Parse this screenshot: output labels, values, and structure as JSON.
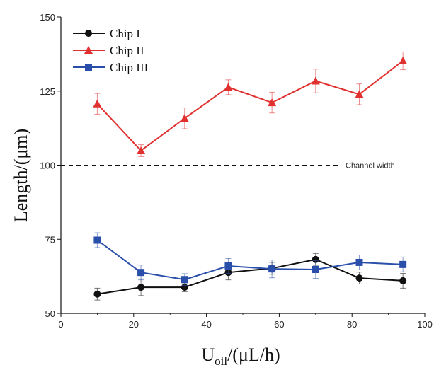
{
  "chart_data": {
    "type": "line",
    "title": "",
    "xlabel": "U",
    "xlabel_sub": "oil",
    "xlabel_unit": "/(μL/h)",
    "ylabel": "Length/(μm)",
    "xlim": [
      0,
      100
    ],
    "ylim": [
      50,
      150
    ],
    "xticks": [
      0,
      20,
      40,
      60,
      80,
      100
    ],
    "yticks": [
      50,
      75,
      100,
      125,
      150
    ],
    "grid": false,
    "legend_position": "top-left",
    "x": [
      10,
      22,
      34,
      46,
      58,
      70,
      82,
      94
    ],
    "series": [
      {
        "name": "Chip I",
        "color": "#111111",
        "marker": "circle",
        "values": [
          56.5,
          58.8,
          58.8,
          63.8,
          65.2,
          68.2,
          61.9,
          61.0
        ],
        "errors": [
          2.0,
          2.8,
          1.5,
          2.5,
          2.0,
          2.0,
          2.0,
          2.5
        ]
      },
      {
        "name": "Chip II",
        "color": "#e03030",
        "marker": "triangle",
        "values": [
          120.7,
          104.9,
          115.8,
          126.3,
          121.1,
          128.4,
          123.9,
          135.2
        ],
        "errors": [
          3.5,
          2.0,
          3.5,
          2.5,
          3.5,
          4.0,
          3.5,
          3.0
        ]
      },
      {
        "name": "Chip III",
        "color": "#2a4faa",
        "marker": "square",
        "values": [
          74.7,
          63.8,
          61.4,
          66.0,
          65.0,
          64.8,
          67.2,
          66.5
        ],
        "errors": [
          2.5,
          2.5,
          2.0,
          2.5,
          3.0,
          3.0,
          2.5,
          2.5
        ]
      }
    ],
    "reference_line": {
      "y": 100,
      "label": "Channel width",
      "style": "dashed"
    }
  }
}
